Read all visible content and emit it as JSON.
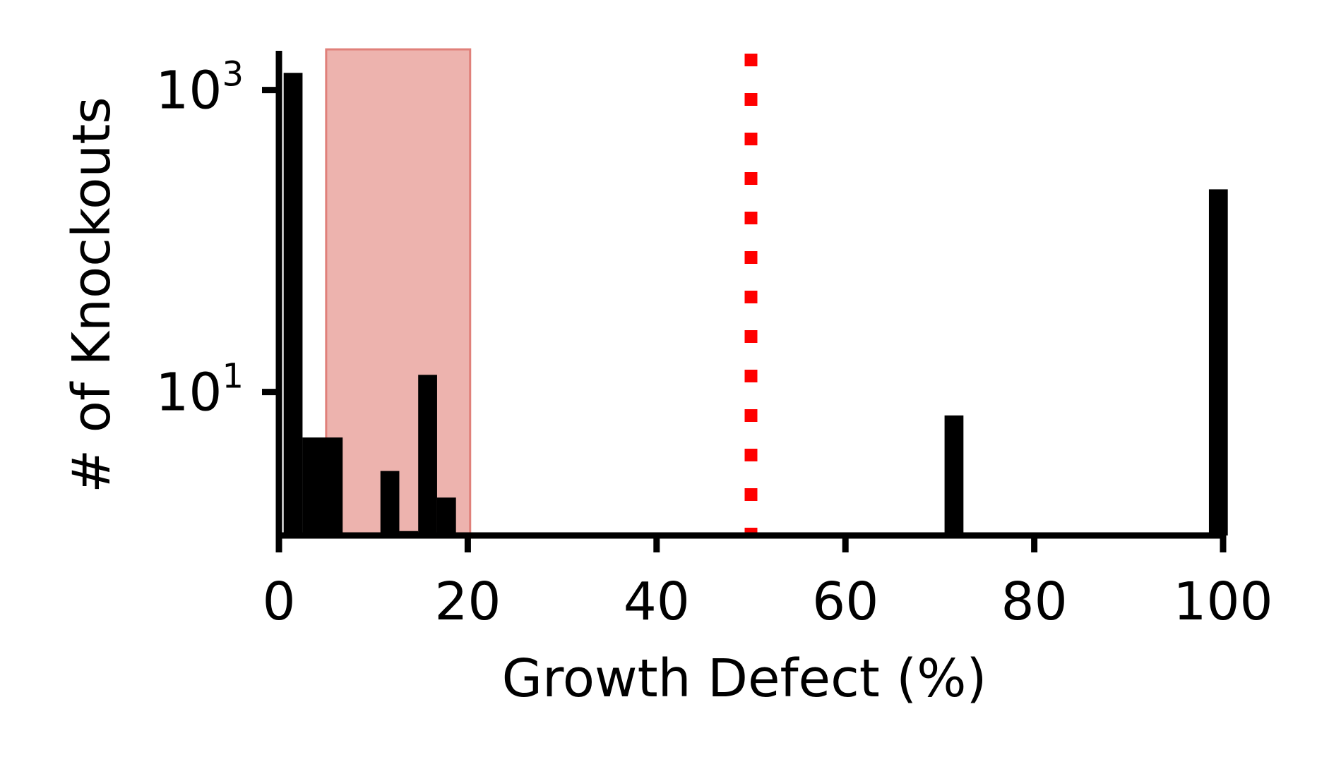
{
  "chart_data": {
    "type": "bar",
    "title": "",
    "xlabel": "Growth Defect (%)",
    "ylabel": "# of Knockouts",
    "xlim": [
      0,
      100
    ],
    "ylim_log10": [
      0.05,
      3.26
    ],
    "yscale": "log",
    "x_ticks": [
      "0",
      "20",
      "40",
      "60",
      "80",
      "100"
    ],
    "y_ticks": [
      {
        "base": "10",
        "exp": "3",
        "value": 1000
      },
      {
        "base": "10",
        "exp": "1",
        "value": 10
      }
    ],
    "bins": [
      {
        "x0": 0.5,
        "x1": 2.5,
        "count": 1300
      },
      {
        "x0": 2.5,
        "x1": 6.75,
        "count": 5
      },
      {
        "x0": 10.75,
        "x1": 12.75,
        "count": 3
      },
      {
        "x0": 12.75,
        "x1": 14.75,
        "count": 1.2
      },
      {
        "x0": 14.75,
        "x1": 16.75,
        "count": 13
      },
      {
        "x0": 16.75,
        "x1": 18.75,
        "count": 2
      },
      {
        "x0": 70.5,
        "x1": 72.5,
        "count": 7
      },
      {
        "x0": 98.5,
        "x1": 100.5,
        "count": 220
      }
    ],
    "shaded_region": {
      "x0": 5,
      "x1": 20.25,
      "color": "#e8a09a"
    },
    "threshold_line": {
      "x": 50,
      "color": "#ff0000",
      "style": "dotted"
    },
    "bar_color": "#000000",
    "grid": false
  }
}
